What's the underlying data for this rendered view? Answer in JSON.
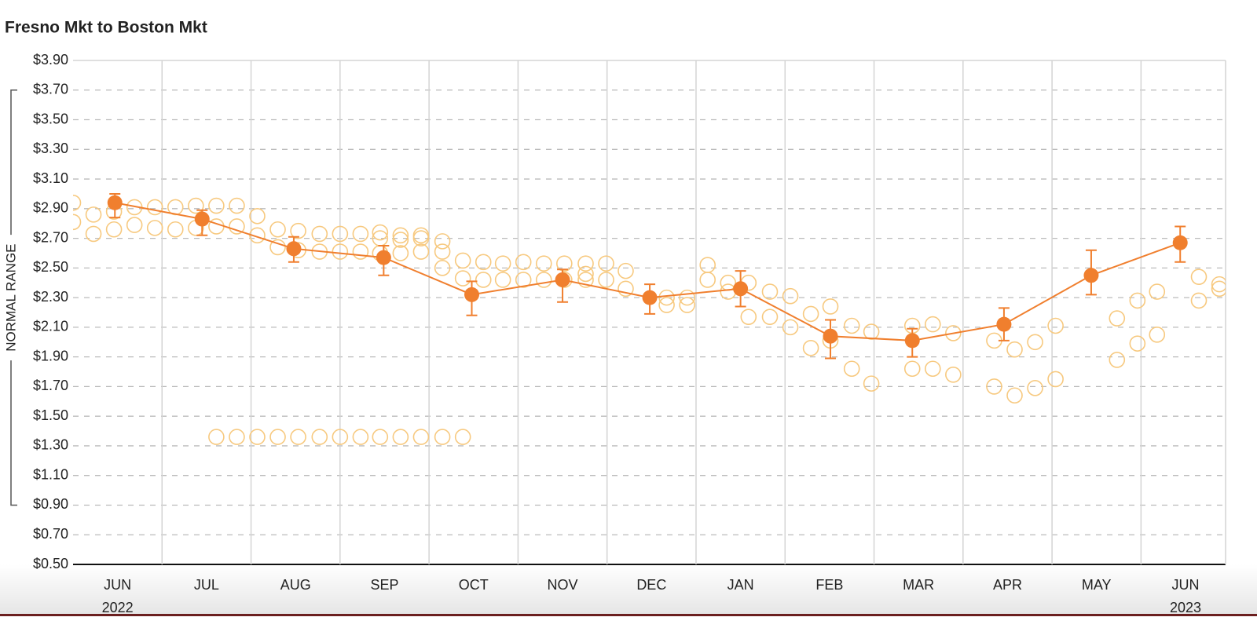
{
  "chart_data": {
    "type": "line",
    "title": "Fresno Mkt to Boston Mkt",
    "normal_range": {
      "label": "NORMAL RANGE",
      "range": [
        0.9,
        3.7
      ]
    },
    "xlim": [
      -0.5,
      12.45
    ],
    "xticks": [
      {
        "value": 0,
        "label": "JUN"
      },
      {
        "value": 1,
        "label": "JUL"
      },
      {
        "value": 2,
        "label": "AUG"
      },
      {
        "value": 3,
        "label": "SEP"
      },
      {
        "value": 4,
        "label": "OCT"
      },
      {
        "value": 5,
        "label": "NOV"
      },
      {
        "value": 6,
        "label": "DEC"
      },
      {
        "value": 7,
        "label": "JAN"
      },
      {
        "value": 8,
        "label": "FEB"
      },
      {
        "value": 9,
        "label": "MAR"
      },
      {
        "value": 10,
        "label": "APR"
      },
      {
        "value": 11,
        "label": "MAY"
      },
      {
        "value": 12,
        "label": "JUN"
      }
    ],
    "year_labels": [
      {
        "value": 0,
        "label": "2022"
      },
      {
        "value": 12,
        "label": "2023"
      }
    ],
    "ylim": [
      0.5,
      3.9
    ],
    "yticks": [
      {
        "value": 0.5,
        "label": "$0.50"
      },
      {
        "value": 0.7,
        "label": "$0.70"
      },
      {
        "value": 0.9,
        "label": "$0.90"
      },
      {
        "value": 1.1,
        "label": "$1.10"
      },
      {
        "value": 1.3,
        "label": "$1.30"
      },
      {
        "value": 1.5,
        "label": "$1.50"
      },
      {
        "value": 1.7,
        "label": "$1.70"
      },
      {
        "value": 1.9,
        "label": "$1.90"
      },
      {
        "value": 2.1,
        "label": "$2.10"
      },
      {
        "value": 2.3,
        "label": "$2.30"
      },
      {
        "value": 2.5,
        "label": "$2.50"
      },
      {
        "value": 2.7,
        "label": "$2.70"
      },
      {
        "value": 2.9,
        "label": "$2.90"
      },
      {
        "value": 3.1,
        "label": "$3.10"
      },
      {
        "value": 3.3,
        "label": "$3.30"
      },
      {
        "value": 3.5,
        "label": "$3.50"
      },
      {
        "value": 3.7,
        "label": "$3.70"
      },
      {
        "value": 3.9,
        "label": "$3.90"
      }
    ],
    "grid": true,
    "series": [
      {
        "style": "hollow",
        "color": "#f7c97f",
        "x": [
          -0.5,
          -0.5,
          -0.27,
          -0.27,
          -0.04,
          -0.04,
          0.19,
          0.19,
          0.42,
          0.42,
          0.65,
          0.65,
          0.88,
          0.88,
          1.11,
          1.11,
          1.11,
          1.34,
          1.34,
          1.34,
          1.57,
          1.57,
          1.57,
          1.8,
          1.8,
          1.8,
          2.03,
          2.03,
          2.03,
          2.27,
          2.27,
          2.27,
          2.5,
          2.5,
          2.5,
          2.73,
          2.73,
          2.73,
          2.95,
          2.95,
          2.95,
          2.95,
          3.18,
          3.18,
          3.18,
          3.18,
          3.41,
          3.41,
          3.41,
          3.41,
          3.65,
          3.65,
          3.65,
          3.65,
          3.88,
          3.88,
          3.88,
          4.11,
          4.11,
          4.33,
          4.33,
          4.56,
          4.56,
          4.79,
          4.79,
          5.02,
          5.02,
          5.26,
          5.26,
          5.26,
          5.49,
          5.49,
          5.71,
          5.71,
          6.17,
          6.17,
          6.4,
          6.4,
          6.63,
          6.63,
          6.86,
          6.86,
          7.09,
          7.09,
          7.33,
          7.33,
          7.56,
          7.56,
          7.79,
          7.79,
          8.01,
          8.01,
          8.25,
          8.25,
          8.47,
          8.47,
          8.93,
          8.93,
          9.16,
          9.16,
          9.39,
          9.39,
          9.85,
          9.85,
          10.08,
          10.08,
          10.31,
          10.31,
          10.54,
          10.54,
          11.23,
          11.23,
          11.46,
          11.46,
          11.68,
          11.68,
          12.15,
          12.15,
          12.38,
          12.38
        ],
        "values": [
          2.94,
          2.81,
          2.86,
          2.73,
          2.88,
          2.76,
          2.91,
          2.79,
          2.91,
          2.77,
          2.91,
          2.76,
          2.92,
          2.77,
          2.92,
          2.78,
          1.36,
          2.92,
          2.78,
          1.36,
          2.85,
          2.72,
          1.36,
          2.76,
          2.64,
          1.36,
          2.75,
          2.62,
          1.36,
          2.73,
          2.61,
          1.36,
          2.73,
          2.61,
          1.36,
          2.73,
          2.61,
          1.36,
          2.74,
          2.7,
          2.6,
          1.36,
          2.72,
          2.69,
          2.6,
          1.36,
          2.72,
          2.7,
          2.61,
          1.36,
          2.68,
          2.61,
          2.5,
          1.36,
          2.55,
          2.43,
          1.36,
          2.54,
          2.42,
          2.53,
          2.42,
          2.54,
          2.42,
          2.53,
          2.42,
          2.53,
          2.42,
          2.53,
          2.46,
          2.42,
          2.53,
          2.42,
          2.48,
          2.36,
          2.3,
          2.25,
          2.3,
          2.25,
          2.52,
          2.42,
          2.4,
          2.34,
          2.4,
          2.17,
          2.34,
          2.17,
          2.31,
          2.1,
          2.19,
          1.96,
          2.24,
          2.01,
          2.11,
          1.82,
          2.07,
          1.72,
          2.11,
          1.82,
          2.12,
          1.82,
          2.06,
          1.78,
          2.01,
          1.7,
          1.95,
          1.64,
          2.0,
          1.69,
          2.11,
          1.75,
          2.16,
          1.88,
          2.28,
          1.99,
          2.34,
          2.05,
          2.44,
          2.28,
          2.39,
          2.36
        ]
      },
      {
        "style": "line",
        "color": "#f07f2e",
        "x": [
          -0.03,
          0.95,
          1.98,
          2.99,
          3.98,
          5.0,
          5.98,
          7.0,
          8.01,
          8.93,
          9.96,
          10.94,
          11.94
        ],
        "values": [
          2.94,
          2.83,
          2.63,
          2.57,
          2.32,
          2.42,
          2.3,
          2.36,
          2.04,
          2.01,
          2.12,
          2.45,
          2.67
        ],
        "low": [
          2.84,
          2.72,
          2.54,
          2.45,
          2.18,
          2.27,
          2.19,
          2.24,
          1.89,
          1.9,
          2.01,
          2.32,
          2.54
        ],
        "high": [
          3.0,
          2.89,
          2.71,
          2.65,
          2.41,
          2.49,
          2.39,
          2.48,
          2.15,
          2.09,
          2.23,
          2.62,
          2.78
        ]
      }
    ]
  }
}
